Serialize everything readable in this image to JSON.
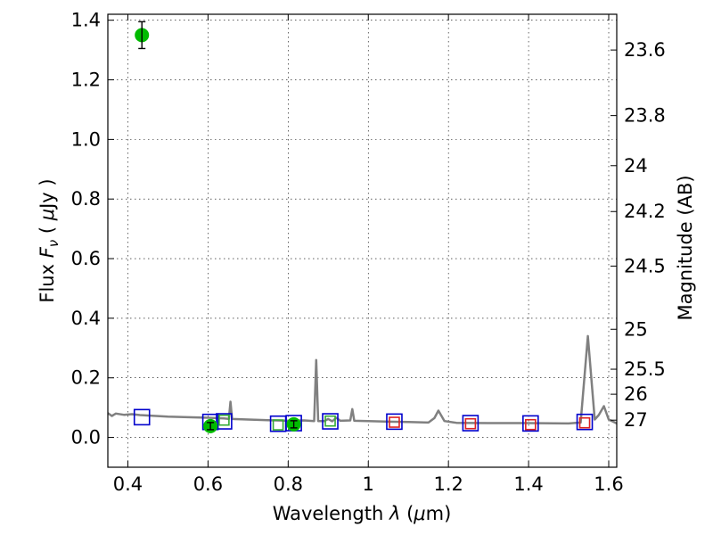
{
  "chart_data": {
    "type": "scatter",
    "x_axis": {
      "label_parts": [
        "Wavelength  ",
        "λ",
        " (",
        "μ",
        "m)"
      ],
      "range": [
        0.35,
        1.62
      ],
      "ticks": [
        0.4,
        0.6,
        0.8,
        1.0,
        1.2,
        1.4,
        1.6
      ],
      "tick_labels": [
        "0.4",
        "0.6",
        "0.8",
        "1",
        "1.2",
        "1.4",
        "1.6"
      ]
    },
    "y_axis": {
      "label_parts": [
        "Flux  ",
        "F",
        "ν",
        "  ( ",
        "μ",
        "Jy )"
      ],
      "range": [
        -0.1,
        1.42
      ],
      "ticks": [
        0.0,
        0.2,
        0.4,
        0.6,
        0.8,
        1.0,
        1.2,
        1.4
      ],
      "tick_labels": [
        "0.0",
        "0.2",
        "0.4",
        "0.6",
        "0.8",
        "1.0",
        "1.2",
        "1.4"
      ]
    },
    "y2_axis": {
      "label": "Magnitude (AB)",
      "ticks": [
        {
          "flux": 1.3,
          "label": "23.6"
        },
        {
          "flux": 1.08,
          "label": "23.8"
        },
        {
          "flux": 0.912,
          "label": "24"
        },
        {
          "flux": 0.758,
          "label": "24.2"
        },
        {
          "flux": 0.575,
          "label": "24.5"
        },
        {
          "flux": 0.363,
          "label": "25"
        },
        {
          "flux": 0.229,
          "label": "25.5"
        },
        {
          "flux": 0.145,
          "label": "26"
        },
        {
          "flux": 0.058,
          "label": "27"
        }
      ]
    },
    "grid": true,
    "series": [
      {
        "kind": "model_spectrum_line",
        "color": "#808080",
        "points": [
          [
            0.35,
            0.082
          ],
          [
            0.36,
            0.072
          ],
          [
            0.37,
            0.08
          ],
          [
            0.39,
            0.076
          ],
          [
            0.41,
            0.078
          ],
          [
            0.43,
            0.075
          ],
          [
            0.46,
            0.073
          ],
          [
            0.5,
            0.07
          ],
          [
            0.55,
            0.068
          ],
          [
            0.6,
            0.066
          ],
          [
            0.64,
            0.064
          ],
          [
            0.652,
            0.062
          ],
          [
            0.656,
            0.12
          ],
          [
            0.66,
            0.062
          ],
          [
            0.7,
            0.06
          ],
          [
            0.75,
            0.058
          ],
          [
            0.8,
            0.056
          ],
          [
            0.84,
            0.057
          ],
          [
            0.865,
            0.055
          ],
          [
            0.87,
            0.26
          ],
          [
            0.875,
            0.055
          ],
          [
            0.89,
            0.055
          ],
          [
            0.9,
            0.062
          ],
          [
            0.91,
            0.054
          ],
          [
            0.92,
            0.066
          ],
          [
            0.93,
            0.056
          ],
          [
            0.955,
            0.057
          ],
          [
            0.96,
            0.095
          ],
          [
            0.965,
            0.056
          ],
          [
            1.0,
            0.055
          ],
          [
            1.05,
            0.053
          ],
          [
            1.1,
            0.052
          ],
          [
            1.15,
            0.05
          ],
          [
            1.165,
            0.065
          ],
          [
            1.175,
            0.09
          ],
          [
            1.19,
            0.055
          ],
          [
            1.22,
            0.049
          ],
          [
            1.3,
            0.048
          ],
          [
            1.4,
            0.048
          ],
          [
            1.5,
            0.047
          ],
          [
            1.53,
            0.05
          ],
          [
            1.548,
            0.34
          ],
          [
            1.565,
            0.06
          ],
          [
            1.575,
            0.075
          ],
          [
            1.588,
            0.105
          ],
          [
            1.6,
            0.06
          ],
          [
            1.62,
            0.047
          ]
        ]
      },
      {
        "kind": "observed_points",
        "marker": "circle",
        "color": "#00bb00",
        "points": [
          {
            "x": 0.435,
            "y": 1.35,
            "err": 0.045
          },
          {
            "x": 0.606,
            "y": 0.038,
            "err": 0.012
          },
          {
            "x": 0.814,
            "y": 0.044,
            "err": 0.012
          }
        ]
      },
      {
        "kind": "model_points_blue",
        "marker": "square",
        "color": "#0000cc",
        "points": [
          [
            0.435,
            0.068
          ],
          [
            0.606,
            0.052
          ],
          [
            0.64,
            0.054
          ],
          [
            0.775,
            0.046
          ],
          [
            0.814,
            0.048
          ],
          [
            0.905,
            0.054
          ],
          [
            1.065,
            0.053
          ],
          [
            1.255,
            0.048
          ],
          [
            1.405,
            0.047
          ],
          [
            1.54,
            0.052
          ]
        ]
      },
      {
        "kind": "model_points_green",
        "marker": "square",
        "color": "#33aa33",
        "points": [
          [
            0.64,
            0.058
          ],
          [
            0.775,
            0.042
          ],
          [
            0.905,
            0.055
          ]
        ]
      },
      {
        "kind": "model_points_red",
        "marker": "square",
        "color": "#dd2222",
        "points": [
          [
            1.065,
            0.051
          ],
          [
            1.255,
            0.046
          ],
          [
            1.405,
            0.043
          ],
          [
            1.54,
            0.049
          ]
        ]
      }
    ]
  }
}
